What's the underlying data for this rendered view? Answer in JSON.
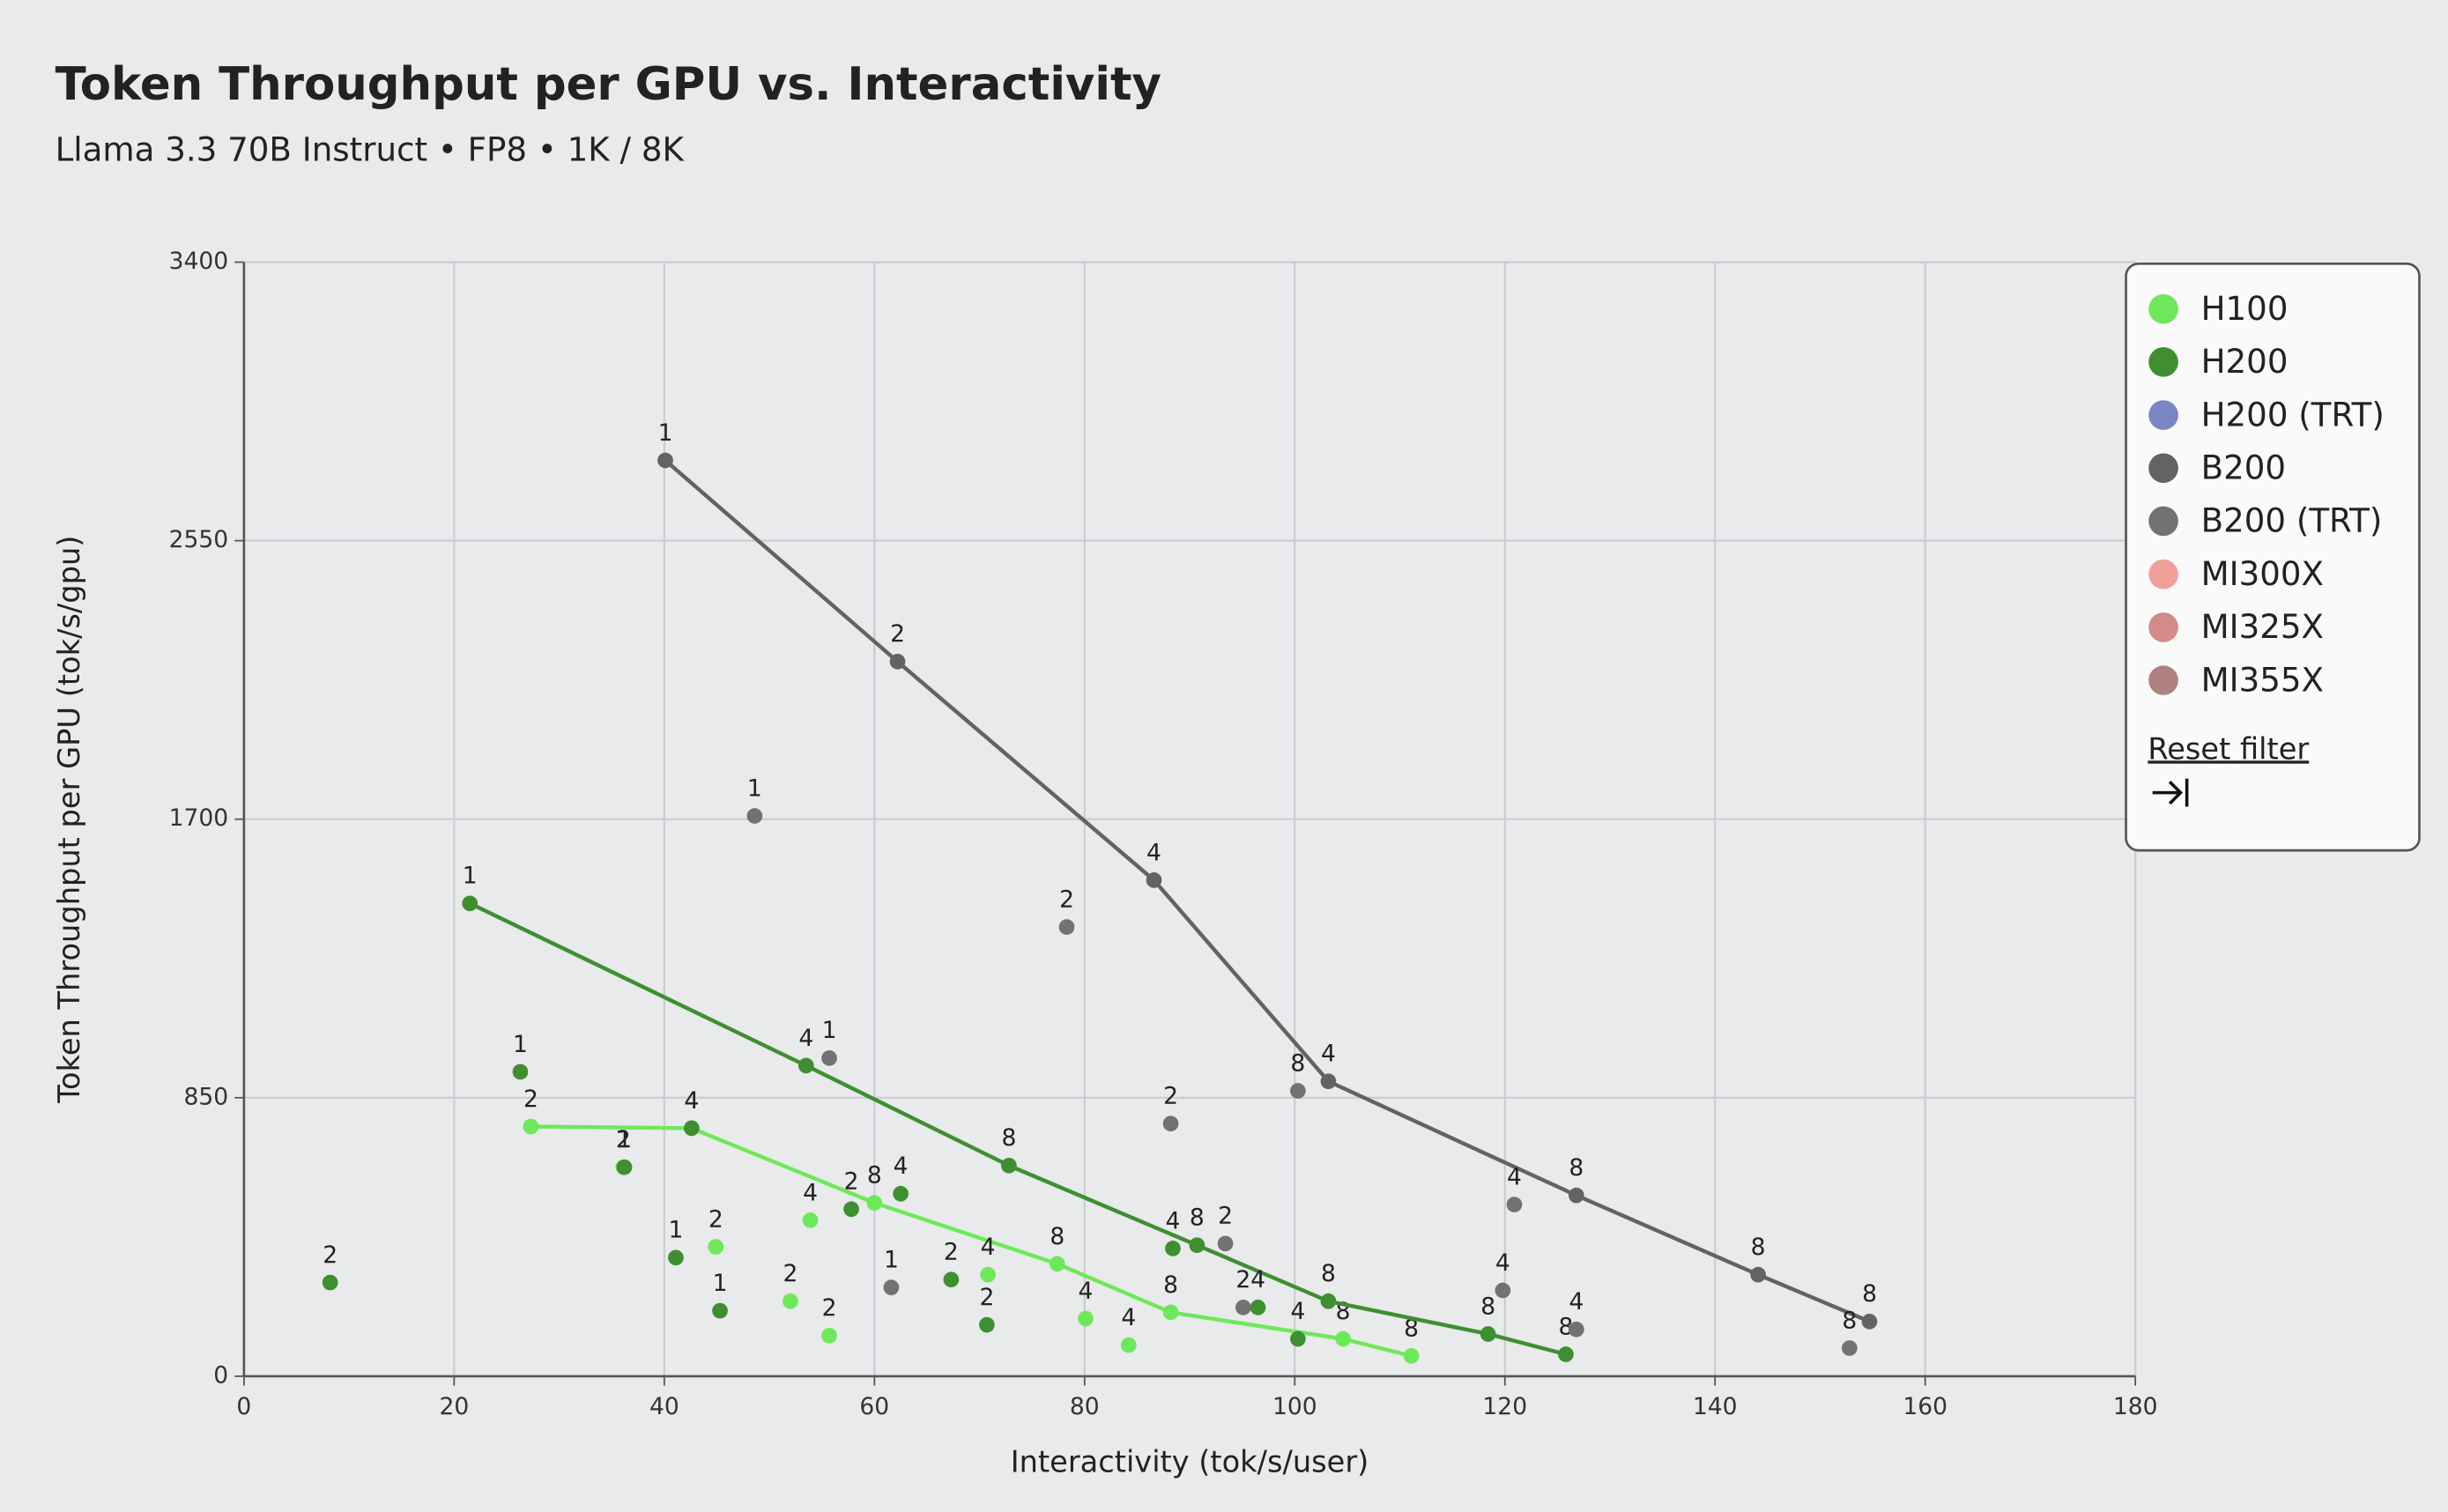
{
  "chart_data": {
    "type": "scatter",
    "title": "Token Throughput per GPU vs. Interactivity",
    "subtitle": "Llama 3.3 70B Instruct • FP8 • 1K / 8K",
    "x_label": "Interactivity (tok/s/user)",
    "y_label": "Token Throughput per GPU (tok/s/gpu)",
    "xlim": [
      0,
      180
    ],
    "xticks": [
      0,
      20,
      40,
      60,
      80,
      100,
      120,
      140,
      160,
      180
    ],
    "ylim": [
      0,
      3400
    ],
    "yticks": [
      0,
      850,
      1700,
      2550,
      3400
    ],
    "grid": true,
    "legend_position": "top-right",
    "reset_label": "Reset filter",
    "series": [
      {
        "name": "H100",
        "color": "#6ee85a",
        "active": true,
        "x": [
          27.3,
          36.1,
          42.6,
          44.9,
          52.0,
          53.9,
          55.7,
          60.0,
          70.8,
          77.4,
          80.1,
          84.2,
          88.2,
          104.6,
          111.1
        ],
        "values": [
          762,
          638,
          757,
          395,
          229,
          476,
          124,
          529,
          310,
          343,
          176,
          95,
          195,
          114,
          62
        ],
        "labels": [
          2,
          2,
          4,
          2,
          2,
          4,
          2,
          8,
          4,
          8,
          4,
          4,
          8,
          8,
          8
        ],
        "frontier_x": [
          27.3,
          42.6,
          60.0,
          77.4,
          88.2,
          104.6,
          111.1
        ],
        "frontier_values": [
          762,
          757,
          529,
          343,
          195,
          114,
          62
        ]
      },
      {
        "name": "H200",
        "color": "#3f8f32",
        "active": true,
        "x": [
          8.2,
          21.5,
          26.3,
          36.2,
          42.6,
          41.1,
          45.3,
          53.5,
          57.8,
          62.5,
          67.3,
          70.7,
          72.8,
          88.4,
          90.7,
          96.5,
          100.3,
          103.2,
          118.4,
          125.8
        ],
        "values": [
          286,
          1443,
          929,
          638,
          757,
          362,
          200,
          948,
          510,
          557,
          295,
          157,
          643,
          390,
          400,
          210,
          114,
          229,
          129,
          67
        ],
        "labels": [
          2,
          1,
          1,
          1,
          4,
          1,
          1,
          4,
          2,
          4,
          2,
          2,
          8,
          4,
          8,
          4,
          4,
          8,
          8,
          8
        ],
        "frontier_x": [
          21.5,
          53.5,
          72.8,
          90.7,
          103.2,
          118.4,
          125.8
        ],
        "frontier_values": [
          1443,
          948,
          643,
          400,
          229,
          129,
          67
        ]
      },
      {
        "name": "H200 (TRT)",
        "color": "#7b86c4",
        "active": false,
        "x": [],
        "values": [],
        "labels": [],
        "frontier_x": [],
        "frontier_values": []
      },
      {
        "name": "B200",
        "color": "#636363",
        "active": true,
        "x": [
          40.1,
          62.2,
          86.6,
          103.2,
          126.8,
          144.1,
          154.7
        ],
        "values": [
          2795,
          2181,
          1514,
          900,
          552,
          310,
          167
        ],
        "labels": [
          1,
          2,
          4,
          4,
          8,
          8,
          8
        ],
        "frontier_x": [
          40.1,
          62.2,
          86.6,
          103.2,
          126.8,
          144.1,
          154.7
        ],
        "frontier_values": [
          2795,
          2181,
          1514,
          900,
          552,
          310,
          167
        ]
      },
      {
        "name": "B200 (TRT)",
        "color": "#727272",
        "active": false,
        "x": [
          48.6,
          55.7,
          61.6,
          78.3,
          88.2,
          93.4,
          95.1,
          100.3,
          120.9,
          119.8,
          126.8,
          152.8
        ],
        "values": [
          1710,
          971,
          271,
          1371,
          771,
          405,
          210,
          871,
          524,
          262,
          143,
          86
        ],
        "labels": [
          1,
          1,
          1,
          2,
          2,
          2,
          2,
          8,
          4,
          4,
          4,
          8
        ],
        "frontier_x": [],
        "frontier_values": []
      },
      {
        "name": "MI300X",
        "color": "#f0a09a",
        "active": false,
        "x": [],
        "values": [],
        "labels": [],
        "frontier_x": [],
        "frontier_values": []
      },
      {
        "name": "MI325X",
        "color": "#d48a86",
        "active": false,
        "x": [],
        "values": [],
        "labels": [],
        "frontier_x": [],
        "frontier_values": []
      },
      {
        "name": "MI355X",
        "color": "#b0827f",
        "active": false,
        "x": [],
        "values": [],
        "labels": [],
        "frontier_x": [],
        "frontier_values": []
      }
    ]
  }
}
